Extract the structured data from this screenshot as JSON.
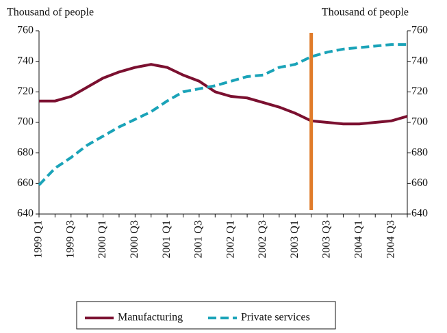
{
  "chart_data": {
    "type": "line",
    "y_label": "Thousand of people",
    "y2_label": "Thousand of people",
    "categories": [
      "1999 Q1",
      null,
      "1999 Q3",
      null,
      "2000 Q1",
      null,
      "2000 Q3",
      null,
      "2001 Q1",
      null,
      "2001 Q3",
      null,
      "2002 Q1",
      null,
      "2002 Q3",
      null,
      "2003 Q1",
      null,
      "2003 Q3",
      null,
      "2004 Q1",
      null,
      "2004 Q3",
      null
    ],
    "series": [
      {
        "name": "Manufacturing",
        "color": "#7b1030",
        "dash": false,
        "values": [
          714,
          714,
          717,
          723,
          729,
          733,
          736,
          738,
          736,
          731,
          727,
          720,
          717,
          716,
          713,
          710,
          706,
          701,
          700,
          699,
          699,
          700,
          701,
          704
        ]
      },
      {
        "name": "Private services",
        "color": "#1aa3b8",
        "dash": true,
        "values": [
          659,
          670,
          677,
          685,
          691,
          697,
          702,
          707,
          714,
          720,
          722,
          724,
          727,
          730,
          731,
          736,
          738,
          743,
          746,
          748,
          749,
          750,
          751,
          751
        ]
      }
    ],
    "ylim": [
      640,
      760
    ],
    "yticks": [
      640,
      660,
      680,
      700,
      720,
      740,
      760
    ],
    "y2lim": [
      640,
      760
    ],
    "y2ticks": [
      640,
      660,
      680,
      700,
      720,
      740,
      760
    ],
    "grid": false,
    "legend": "bottom"
  }
}
